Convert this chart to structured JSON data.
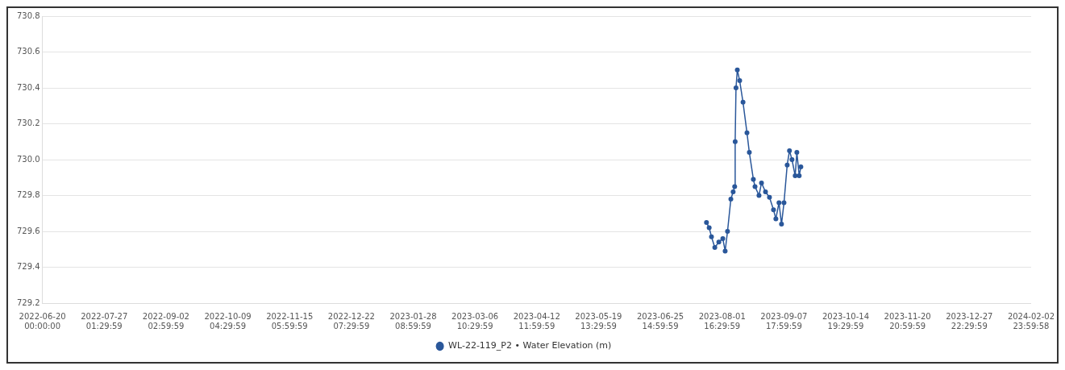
{
  "chart_data": {
    "type": "line",
    "marker": "circle",
    "line_style": "solid",
    "grid": "y",
    "legend": "bottom",
    "x": [
      "2023-07-23T07:00",
      "2023-07-24T22:00",
      "2023-07-26T07:00",
      "2023-07-28T07:00",
      "2023-07-30T17:00",
      "2023-08-02T02:00",
      "2023-08-03T12:00",
      "2023-08-04T22:00",
      "2023-08-06T22:00",
      "2023-08-08T07:00",
      "2023-08-09T05:00",
      "2023-08-09T12:00",
      "2023-08-10T00:00",
      "2023-08-10T19:00",
      "2023-08-12T05:00",
      "2023-08-14T05:00",
      "2023-08-16T14:00",
      "2023-08-18T00:00",
      "2023-08-20T10:00",
      "2023-08-21T10:00",
      "2023-08-23T19:00",
      "2023-08-25T07:00",
      "2023-08-27T17:00",
      "2023-08-30T02:00",
      "2023-09-01T12:00",
      "2023-09-02T22:00",
      "2023-09-04T19:00",
      "2023-09-06T07:00",
      "2023-09-07T19:00",
      "2023-09-09T17:00",
      "2023-09-11T02:00",
      "2023-09-12T14:00",
      "2023-09-14T12:00",
      "2023-09-15T12:00",
      "2023-09-16T22:00",
      "2023-09-17T22:00"
    ],
    "series": [
      {
        "name": "WL-22-119_P2 • Water Elevation (m)",
        "color": "#2a579a",
        "values": [
          729.65,
          729.62,
          729.57,
          729.51,
          729.54,
          729.56,
          729.49,
          729.6,
          729.78,
          729.82,
          729.85,
          730.1,
          730.4,
          730.5,
          730.44,
          730.32,
          730.15,
          730.04,
          729.89,
          729.85,
          729.8,
          729.87,
          729.82,
          729.79,
          729.72,
          729.67,
          729.76,
          729.64,
          729.76,
          729.97,
          730.05,
          730.0,
          729.91,
          730.04,
          729.91,
          729.96
        ]
      }
    ],
    "ylim": [
      729.2,
      730.8
    ],
    "yticks": [
      {
        "value": 729.2,
        "label": "729.2"
      },
      {
        "value": 729.4,
        "label": "729.4"
      },
      {
        "value": 729.6,
        "label": "729.6"
      },
      {
        "value": 729.8,
        "label": "729.8"
      },
      {
        "value": 730,
        "label": "730.0"
      },
      {
        "value": 730.2,
        "label": "730.2"
      },
      {
        "value": 730.4,
        "label": "730.4"
      },
      {
        "value": 730.6,
        "label": "730.6"
      },
      {
        "value": 730.8,
        "label": "730.8"
      }
    ],
    "xlim": [
      "2022-06-20T00:00",
      "2024-02-03T00:00"
    ],
    "xticks": [
      {
        "value": "2022-06-20T00:00",
        "label": "2022-06-20 00:00:00"
      },
      {
        "value": "2022-07-27T01:30",
        "label": "2022-07-27 01:29:59"
      },
      {
        "value": "2022-09-02T03:00",
        "label": "2022-09-02 02:59:59"
      },
      {
        "value": "2022-10-09T04:30",
        "label": "2022-10-09 04:29:59"
      },
      {
        "value": "2022-11-15T06:00",
        "label": "2022-11-15 05:59:59"
      },
      {
        "value": "2022-12-22T07:30",
        "label": "2022-12-22 07:29:59"
      },
      {
        "value": "2023-01-28T09:00",
        "label": "2023-01-28 08:59:59"
      },
      {
        "value": "2023-03-06T10:30",
        "label": "2023-03-06 10:29:59"
      },
      {
        "value": "2023-04-12T12:00",
        "label": "2023-04-12 11:59:59"
      },
      {
        "value": "2023-05-19T13:30",
        "label": "2023-05-19 13:29:59"
      },
      {
        "value": "2023-06-25T15:00",
        "label": "2023-06-25 14:59:59"
      },
      {
        "value": "2023-08-01T16:30",
        "label": "2023-08-01 16:29:59"
      },
      {
        "value": "2023-09-07T18:00",
        "label": "2023-09-07 17:59:59"
      },
      {
        "value": "2023-10-14T19:30",
        "label": "2023-10-14 19:29:59"
      },
      {
        "value": "2023-11-20T21:00",
        "label": "2023-11-20 20:59:59"
      },
      {
        "value": "2023-12-27T22:30",
        "label": "2023-12-27 22:29:59"
      },
      {
        "value": "2024-02-03T00:00",
        "label": "2024-02-02 23:59:58"
      }
    ]
  }
}
